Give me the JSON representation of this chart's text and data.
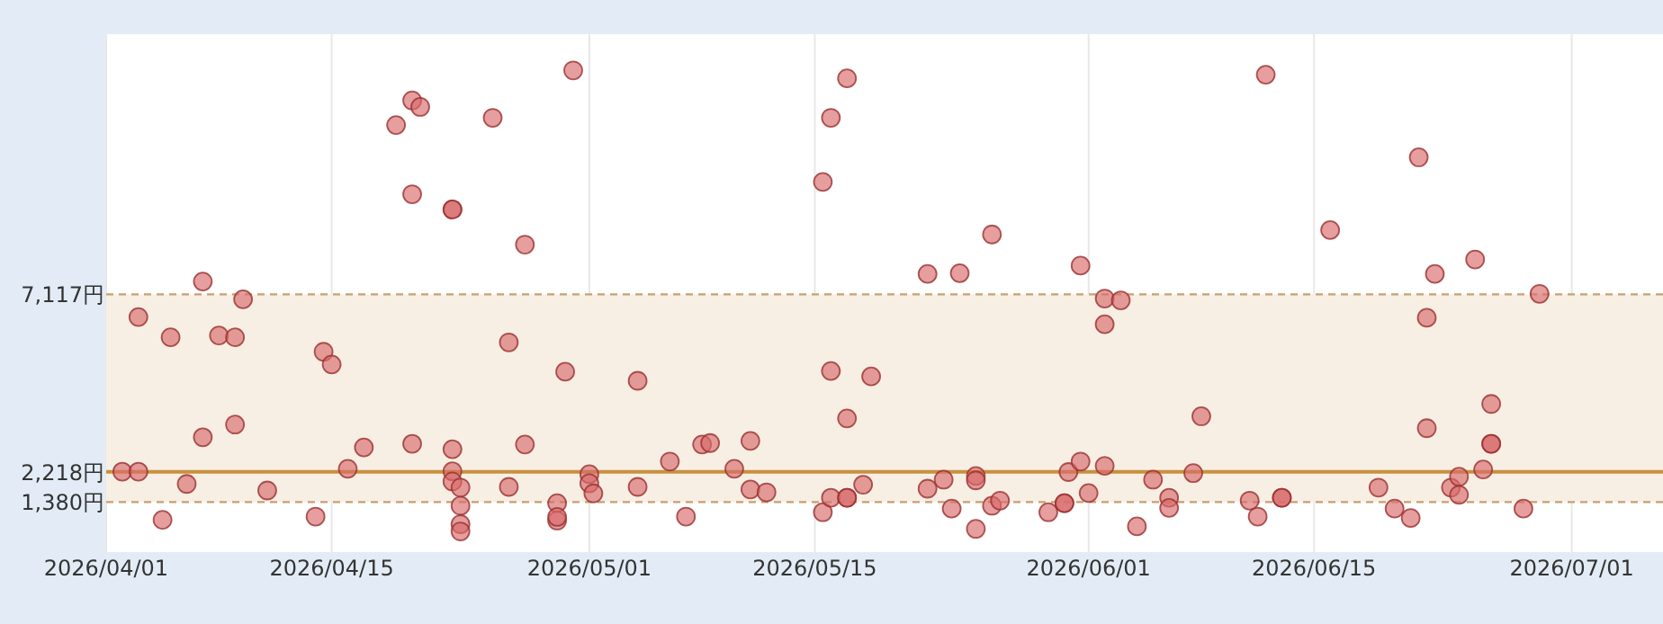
{
  "chart_data": {
    "type": "scatter",
    "marker": "circle",
    "grid": "x",
    "xlim": [
      "2026-04-01",
      "2026-07-06T16:00"
    ],
    "ylim": [
      0,
      14300
    ],
    "xticks": [
      {
        "value": "2026-04-01",
        "label": "2026/04/01"
      },
      {
        "value": "2026-04-15",
        "label": "2026/04/15"
      },
      {
        "value": "2026-05-01",
        "label": "2026/05/01"
      },
      {
        "value": "2026-05-15",
        "label": "2026/05/15"
      },
      {
        "value": "2026-06-01",
        "label": "2026/06/01"
      },
      {
        "value": "2026-06-15",
        "label": "2026/06/15"
      },
      {
        "value": "2026-07-01",
        "label": "2026/07/01"
      }
    ],
    "yticks": [
      {
        "value": 1380,
        "label": "1,380円"
      },
      {
        "value": 2218,
        "label": "2,218円"
      },
      {
        "value": 7117,
        "label": "7,117円"
      }
    ],
    "bands": [
      {
        "axis": "y",
        "from": 1380,
        "to": 7117,
        "color": "#f7efe4"
      }
    ],
    "ref_lines": [
      {
        "axis": "y",
        "value": 1380,
        "color": "#c8a070",
        "line_style": "dashed"
      },
      {
        "axis": "y",
        "value": 2218,
        "color": "#c8913f",
        "line_style": "solid"
      },
      {
        "axis": "y",
        "value": 7117,
        "color": "#c8a070",
        "line_style": "dashed"
      }
    ],
    "series": [
      {
        "color": "#d96a6a",
        "x": [
          "2026-04-02",
          "2026-04-03",
          "2026-04-03",
          "2026-04-04T12:00",
          "2026-04-05",
          "2026-04-06",
          "2026-04-07",
          "2026-04-07",
          "2026-04-08",
          "2026-04-09",
          "2026-04-09",
          "2026-04-09T12:00",
          "2026-04-11",
          "2026-04-14",
          "2026-04-14T12:00",
          "2026-04-15",
          "2026-04-16",
          "2026-04-17",
          "2026-04-19",
          "2026-04-20",
          "2026-04-20T12:00",
          "2026-04-20",
          "2026-04-20",
          "2026-04-22T12:00",
          "2026-04-22T12:00",
          "2026-04-22T12:00",
          "2026-04-22T12:00",
          "2026-04-22T12:00",
          "2026-04-23",
          "2026-04-23",
          "2026-04-23",
          "2026-04-23",
          "2026-04-25",
          "2026-04-26",
          "2026-04-26",
          "2026-04-27",
          "2026-04-27",
          "2026-04-29",
          "2026-04-29",
          "2026-04-29",
          "2026-04-30",
          "2026-04-29T12:00",
          "2026-05-01",
          "2026-05-01",
          "2026-05-01T06:00",
          "2026-05-04",
          "2026-05-04",
          "2026-05-06",
          "2026-05-07",
          "2026-05-08",
          "2026-05-08T12:00",
          "2026-05-10",
          "2026-05-11",
          "2026-05-11",
          "2026-05-12",
          "2026-05-15T12:00",
          "2026-05-15T12:00",
          "2026-05-16",
          "2026-05-17",
          "2026-05-16",
          "2026-05-16",
          "2026-05-17",
          "2026-05-17",
          "2026-05-17",
          "2026-05-18",
          "2026-05-18T12:00",
          "2026-05-22",
          "2026-05-22",
          "2026-05-23",
          "2026-05-23T12:00",
          "2026-05-24",
          "2026-05-25",
          "2026-05-25",
          "2026-05-25",
          "2026-05-26",
          "2026-05-26",
          "2026-05-26T12:00",
          "2026-05-29T12:00",
          "2026-05-30T12:00",
          "2026-05-30T12:00",
          "2026-05-30T18:00",
          "2026-05-31T12:00",
          "2026-05-31T12:00",
          "2026-06-01",
          "2026-06-02",
          "2026-06-02",
          "2026-06-02",
          "2026-06-03",
          "2026-06-04",
          "2026-06-05",
          "2026-06-06",
          "2026-06-06",
          "2026-06-07T12:00",
          "2026-06-08",
          "2026-06-11",
          "2026-06-11T12:00",
          "2026-06-12",
          "2026-06-13",
          "2026-06-13",
          "2026-06-16",
          "2026-06-19",
          "2026-06-20",
          "2026-06-21",
          "2026-06-21T12:00",
          "2026-06-22",
          "2026-06-22",
          "2026-06-22T12:00",
          "2026-06-23T12:00",
          "2026-06-24",
          "2026-06-24",
          "2026-06-25",
          "2026-06-25T12:00",
          "2026-06-26",
          "2026-06-26",
          "2026-06-26",
          "2026-06-28",
          "2026-06-29"
        ],
        "values": [
          2220,
          2220,
          6490,
          890,
          5930,
          1880,
          3170,
          7470,
          5980,
          3520,
          5930,
          6980,
          1700,
          980,
          5530,
          5180,
          2300,
          2890,
          11790,
          12470,
          12290,
          9880,
          2990,
          2840,
          9460,
          9460,
          2230,
          1950,
          1780,
          1280,
          770,
          570,
          11990,
          5790,
          1800,
          8490,
          2970,
          1350,
          870,
          970,
          13300,
          4980,
          2150,
          1900,
          1620,
          1800,
          4730,
          2500,
          980,
          2970,
          3010,
          2300,
          3070,
          1730,
          1650,
          1100,
          10220,
          11990,
          13080,
          1500,
          5000,
          3690,
          1500,
          1500,
          1860,
          4850,
          7680,
          1750,
          2000,
          1200,
          7700,
          2100,
          1980,
          640,
          1280,
          8770,
          1420,
          1100,
          1350,
          1350,
          2210,
          7910,
          2500,
          1630,
          2380,
          7000,
          6290,
          6950,
          710,
          2000,
          1500,
          1220,
          2180,
          3750,
          1420,
          980,
          13180,
          1500,
          1500,
          8890,
          1780,
          1200,
          940,
          10900,
          6470,
          3420,
          7680,
          1780,
          2080,
          1580,
          8080,
          2280,
          2990,
          2990,
          4090,
          1200,
          7130
        ]
      }
    ]
  }
}
